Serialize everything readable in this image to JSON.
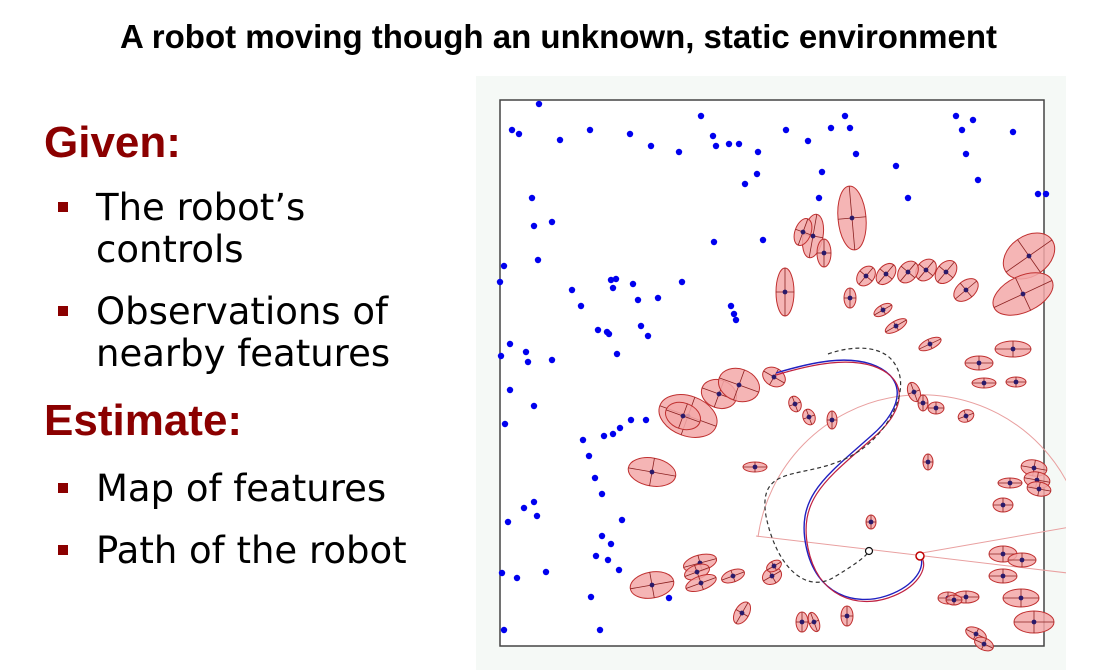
{
  "slide": {
    "title": "A robot moving though an unknown, static environment",
    "given_heading": "Given:",
    "given_items": [
      "The robot’s controls",
      "Observations of nearby features"
    ],
    "estimate_heading": "Estimate:",
    "estimate_items": [
      "Map of features",
      "Path of the robot"
    ]
  },
  "figure": {
    "colors": {
      "landmark": "#0000ee",
      "uncertainty_fill": "#f3a8a8",
      "uncertainty_edge": "#c03030",
      "estimated_path": "#c02040",
      "true_path": "#2020c0",
      "odometry_path": "#333333",
      "robot_pose": "#c00000"
    }
  }
}
